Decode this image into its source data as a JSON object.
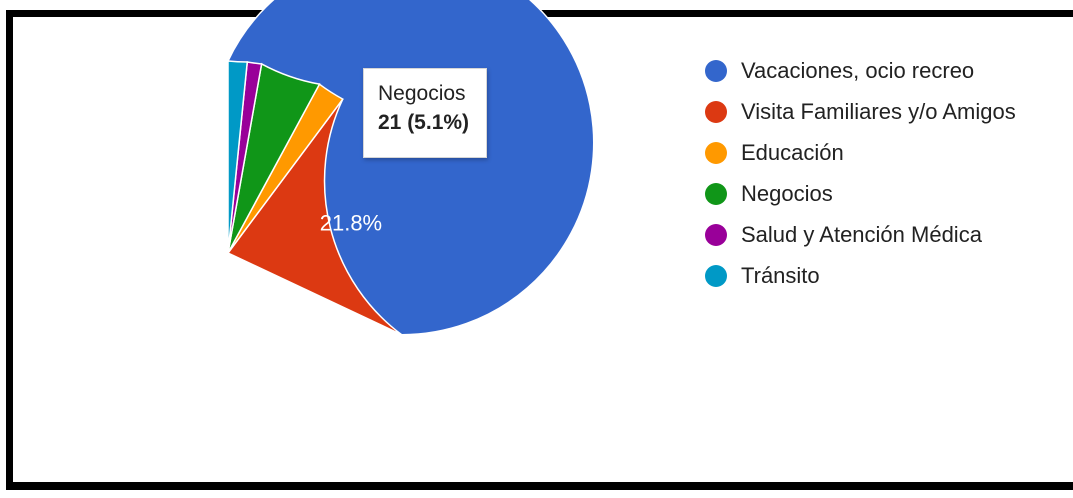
{
  "chart_data": {
    "type": "pie",
    "slices": [
      {
        "name": "Vacaciones, ocio recreo",
        "percent": 68.0,
        "label": "68%",
        "color": "#3366cc"
      },
      {
        "name": "Visita Familiares y/o Amigos",
        "percent": 21.8,
        "label": "21.8%",
        "color": "#dc3912"
      },
      {
        "name": "Educación",
        "percent": 2.3,
        "label": "",
        "color": "#ff9900"
      },
      {
        "name": "Negocios",
        "percent": 5.1,
        "label": "",
        "color": "#109618"
      },
      {
        "name": "Salud y Atención Médica",
        "percent": 1.2,
        "label": "",
        "color": "#990099"
      },
      {
        "name": "Tránsito",
        "percent": 1.6,
        "label": "",
        "color": "#0099c6"
      }
    ],
    "legend_position": "right",
    "tooltip": {
      "name": "Negocios",
      "value": "21 (5.1%)",
      "highlight_color": "#b7e1b0"
    }
  }
}
